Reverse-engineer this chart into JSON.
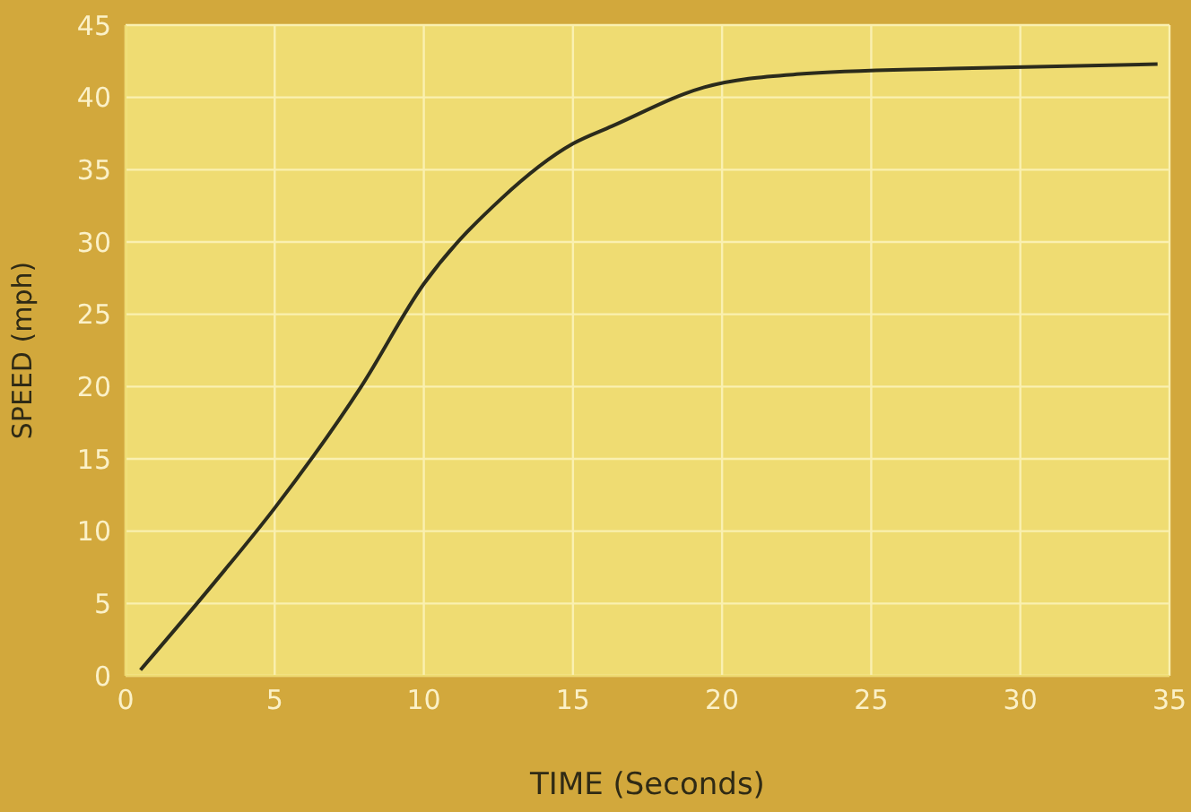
{
  "chart_data": {
    "type": "line",
    "xlabel": "TIME (Seconds)",
    "ylabel": "SPEED (mph)",
    "x": [
      0.5,
      3,
      5,
      7.9,
      10,
      12.6,
      15,
      16.3,
      19.4,
      22.5,
      27.7,
      34.6
    ],
    "series": [
      {
        "color": "#2b2b1c",
        "values": [
          0.4,
          6.5,
          11.6,
          20,
          27.1,
          33,
          36.8,
          38,
          40.7,
          41.6,
          42,
          42.3
        ]
      }
    ],
    "xlim": [
      0,
      35
    ],
    "xticks": [
      0,
      5,
      10,
      15,
      20,
      25,
      30,
      35
    ],
    "ylim": [
      0,
      45
    ],
    "yticks": [
      0,
      5,
      10,
      15,
      20,
      25,
      30,
      35,
      40,
      45
    ],
    "grid": true,
    "marker": "none",
    "line_style": "solid"
  }
}
